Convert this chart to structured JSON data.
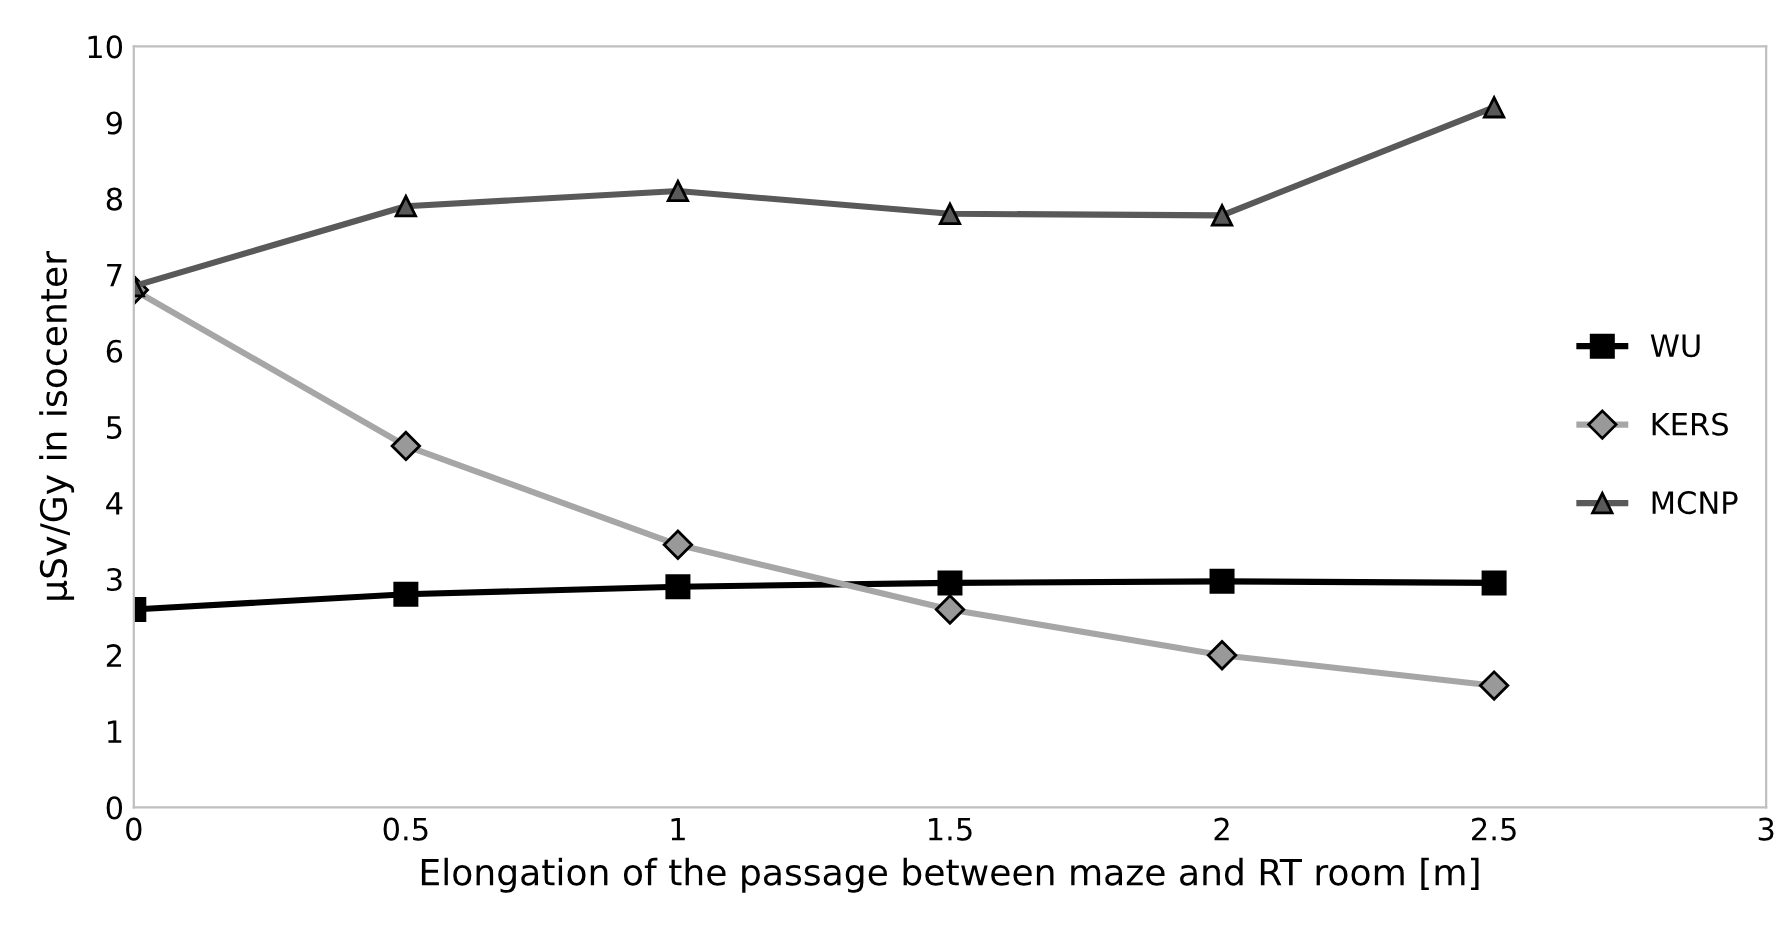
{
  "chart_data": {
    "type": "line",
    "xlabel": "Elongation of the passage between maze and RT room [m]",
    "ylabel": "µSv/Gy in isocenter",
    "x": [
      0,
      0.5,
      1,
      1.5,
      2,
      2.5
    ],
    "series": [
      {
        "name": "WU",
        "color": "#000000",
        "marker": "square",
        "values": [
          2.6,
          2.8,
          2.9,
          2.95,
          2.97,
          2.95
        ]
      },
      {
        "name": "KERS",
        "color": "#a6a6a6",
        "marker": "diamond",
        "values": [
          6.8,
          4.75,
          3.45,
          2.6,
          2.0,
          1.6
        ]
      },
      {
        "name": "MCNP",
        "color": "#595959",
        "marker": "triangle",
        "values": [
          6.85,
          7.9,
          8.1,
          7.8,
          7.78,
          9.2
        ]
      }
    ],
    "xlim": [
      0,
      3
    ],
    "xticks": [
      0,
      0.5,
      1,
      1.5,
      2,
      2.5,
      3
    ],
    "ylim": [
      0,
      10
    ],
    "yticks": [
      0,
      1,
      2,
      3,
      4,
      5,
      6,
      7,
      8,
      9,
      10
    ],
    "grid": false,
    "legend": "right",
    "line_style": "solid"
  }
}
